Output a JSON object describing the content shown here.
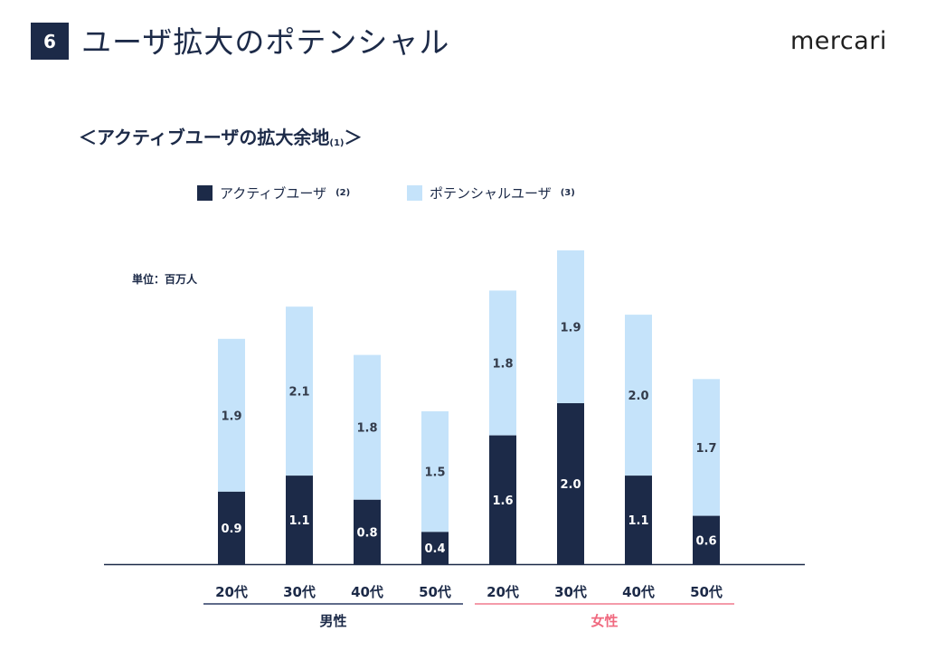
{
  "header": {
    "page_number": "6",
    "title": "ユーザ拡大のポテンシャル",
    "logo": "mercari"
  },
  "section_title": {
    "text": "＜アクティブユーザの拡大余地",
    "note": "(1)",
    "close": "＞"
  },
  "unit_label": "単位：百万人",
  "colors": {
    "active": "#1c2a48",
    "potential": "#c5e3fa",
    "male_line": "#2a3a63",
    "female_line": "#f07a8e",
    "female_text": "#f0697f",
    "axis": "#1c2a48"
  },
  "chart_data": {
    "type": "bar",
    "stacked": true,
    "categories": [
      "20代",
      "30代",
      "40代",
      "50代",
      "20代",
      "30代",
      "40代",
      "50代"
    ],
    "groups": [
      {
        "name": "男性",
        "range": [
          0,
          3
        ]
      },
      {
        "name": "女性",
        "range": [
          4,
          7
        ]
      }
    ],
    "series": [
      {
        "name": "アクティブユーザ",
        "note": "(2)",
        "values": [
          0.9,
          1.1,
          0.8,
          0.4,
          1.6,
          2.0,
          1.1,
          0.6
        ]
      },
      {
        "name": "ポテンシャルユーザ",
        "note": "(3)",
        "values": [
          1.9,
          2.1,
          1.8,
          1.5,
          1.8,
          1.9,
          2.0,
          1.7
        ]
      }
    ],
    "value_labels": {
      "active": [
        "0.9",
        "1.1",
        "0.8",
        "0.4",
        "1.6",
        "2.0",
        "1.1",
        "0.6"
      ],
      "potential": [
        "1.9",
        "2.1",
        "1.8",
        "1.5",
        "1.8",
        "1.9",
        "2.0",
        "1.7"
      ]
    },
    "ylim": [
      0,
      4.0
    ],
    "grid": false,
    "legend_position": "top"
  }
}
